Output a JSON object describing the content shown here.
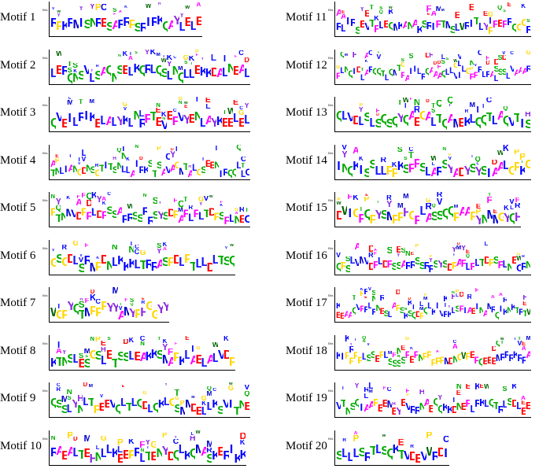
{
  "figure": {
    "y_axis_title": "Bits",
    "motifs": [
      {
        "label": "Motif 1",
        "seq": "RPKRMISNRESARRPSRIRKQAYLELE"
      },
      {
        "label": "Motif 2",
        "seq": "LERQNSVLSAQNSELKQRLQSLNQLLEKKDALNEAL"
      },
      {
        "label": "Motif 3",
        "seq": "QVEILRIKELALYKLNRFTEVEFVYENLAYKEELEL"
      },
      {
        "label": "Motif 4",
        "seq": "TNLIANGDNSGTITSNLLAIRKSTSAVAGMTALGSEENIRQQLLC"
      },
      {
        "label": "Motif 5",
        "seq": "PTNMVDPFLDFSSARRSSRRSYSDPAFLFLTDPSFLNEC"
      },
      {
        "label": "Motif 6",
        "seq": "GSGDLSRMPDNLKKKLTRRASPDLPTLLDLTSQ"
      },
      {
        "label": "Motif 7",
        "seq": "WGPYQTMPPPYYAMYPHGGYY"
      },
      {
        "label": "Motif 8",
        "seq": "KTNSLESGSLETSSLEAKKSMAPKLAELALVDP"
      },
      {
        "label": "Motif 9",
        "seq": "QSSLYNLTPEEVQLTLQDLQKLGSMMDELLKSVITNE"
      },
      {
        "label": "Motif 10",
        "seq": "RAEALTEHNLLKEEPRLTENYDQLKQMASKERIKK"
      },
      {
        "label": "Motif 11",
        "seq": "RLIRSEVTFLEQMKANAKSRIFTMSLWRITLYPFEFRQGGR"
      },
      {
        "label": "Motif 12",
        "seq": "FLNQIDLARQQTLQMTFAIILRQAAAQLLVILGFFRLRALSSLVAAAR"
      },
      {
        "label": "Motif 13",
        "seq": "QLVDLSLSQSQYQAEGALTQAMEKLQQTLAQVTIS"
      },
      {
        "label": "Motif 14",
        "seq": "INQKISSLLPPKSFFSLARSYADYSYSIAALGPKG"
      },
      {
        "label": "Motif 15",
        "seq": "DWIGFQPYSMPPHGFLASSQQPAAPYNMMGYQH"
      },
      {
        "label": "Motif 16",
        "seq": "QPSLVMVDFLDFSSARRSSRRSYSDPAFLFLTDPSFLNECRN"
      },
      {
        "label": "Motif 17",
        "seq": "EEAAQVFRLRNESLAPSKSQDPQLKIVRKLSFIAEINAMRQIKNKTRTW"
      },
      {
        "label": "Motif 18",
        "seq": "KIPPPPLSSEPLSSSSFEFNPPPPPMDNGWPEFQEEEMRRRKRRA"
      },
      {
        "label": "Motif 19",
        "seq": "VTNSQIAAPEEMEYEVRRNAEQQKKDNEFLRKLQTRLSDLEE"
      },
      {
        "label": "Motif 20",
        "seq": "SLLLSRTLSQKTVDEVWRDI"
      }
    ],
    "colors": {
      "A": "#ff00ff",
      "C": "#0000ff",
      "D": "#ff0000",
      "E": "#ff0000",
      "F": "#ff00ff",
      "G": "#ffd700",
      "H": "#8a2be2",
      "I": "#0000ff",
      "K": "#0000ff",
      "L": "#1a1aff",
      "M": "#0000cc",
      "N": "#00aa00",
      "P": "#ffd700",
      "Q": "#00aa00",
      "R": "#0000ff",
      "S": "#00aa00",
      "T": "#00aa00",
      "V": "#0000ff",
      "W": "#006400",
      "Y": "#8a2be2"
    }
  }
}
